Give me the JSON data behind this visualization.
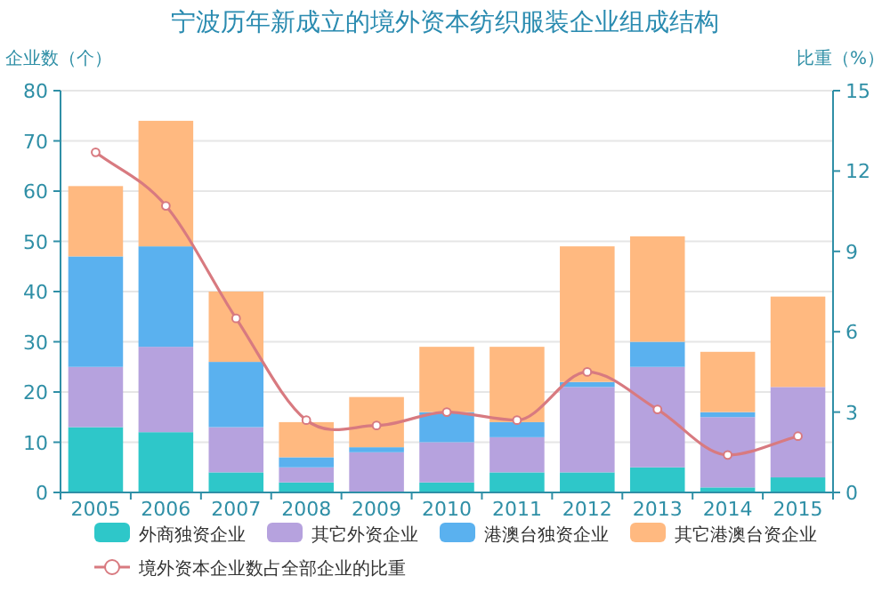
{
  "chart_data": {
    "type": "bar",
    "stacked": true,
    "title": "宁波历年新成立的境外资本纺织服装企业组成结构",
    "ylabel": "企业数（个）",
    "y2label": "比重（%）",
    "categories": [
      "2005",
      "2006",
      "2007",
      "2008",
      "2009",
      "2010",
      "2011",
      "2012",
      "2013",
      "2014",
      "2015"
    ],
    "series": [
      {
        "name": "外商独资企业",
        "color": "#2ec7c9",
        "values": [
          13,
          12,
          4,
          2,
          0,
          2,
          4,
          4,
          5,
          1,
          3
        ]
      },
      {
        "name": "其它外资企业",
        "color": "#b6a2de",
        "values": [
          12,
          17,
          9,
          3,
          8,
          8,
          7,
          17,
          20,
          14,
          18
        ]
      },
      {
        "name": "港澳台独资企业",
        "color": "#5ab1ef",
        "values": [
          22,
          20,
          13,
          2,
          1,
          6,
          3,
          1,
          5,
          1,
          0
        ]
      },
      {
        "name": "其它港澳台资企业",
        "color": "#ffb980",
        "values": [
          14,
          25,
          14,
          7,
          10,
          13,
          15,
          27,
          21,
          12,
          18
        ]
      },
      {
        "name": "境外资本企业数占全部企业的比重",
        "type": "line",
        "axis": "y2",
        "color": "#d87a80",
        "marker": "circle",
        "values": [
          12.7,
          10.7,
          6.5,
          2.7,
          2.5,
          3.0,
          2.7,
          4.5,
          3.1,
          1.4,
          2.1
        ]
      }
    ],
    "ylim": [
      0,
      80
    ],
    "yticks": [
      0,
      10,
      20,
      30,
      40,
      50,
      60,
      70,
      80
    ],
    "y2lim": [
      0,
      15
    ],
    "y2ticks": [
      0,
      3,
      6,
      9,
      12,
      15
    ],
    "grid": "y",
    "legend": "bottom"
  }
}
